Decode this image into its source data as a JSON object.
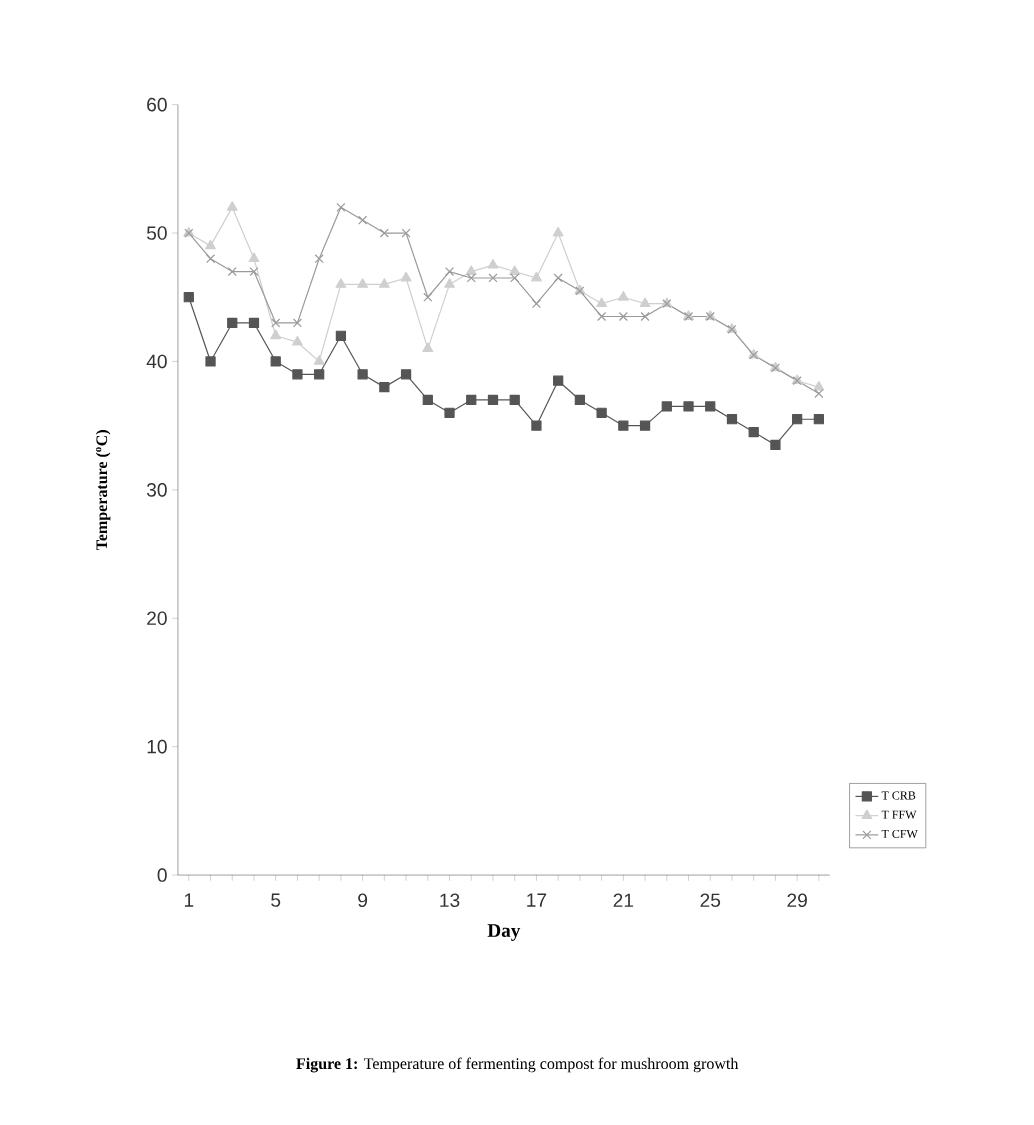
{
  "chart_data": {
    "type": "line",
    "title": "**Figure 1:** Temperature of fermenting compost for mushroom growth",
    "xlabel": "Day",
    "ylabel": "Temperature ($^{o}$C)",
    "categories": [
      "1",
      null,
      null,
      null,
      "5",
      null,
      null,
      null,
      "9",
      null,
      null,
      null,
      "13",
      null,
      null,
      null,
      "17",
      null,
      null,
      null,
      "21",
      null,
      null,
      null,
      "25",
      null,
      null,
      null,
      "29",
      null
    ],
    "ylim": [
      0,
      60
    ],
    "yticks": [
      0,
      10,
      20,
      30,
      40,
      50,
      60
    ],
    "legend": "right",
    "series": [
      {
        "name": "T  CRB",
        "color": "#555555",
        "marker": "square",
        "values": [
          45,
          40,
          43,
          43,
          40,
          39,
          39,
          42,
          39,
          38,
          39,
          37,
          36,
          37,
          37,
          37,
          35,
          38.5,
          37,
          36,
          35,
          35,
          36.5,
          36.5,
          36.5,
          35.5,
          34.5,
          33.5,
          35.5,
          35.5
        ]
      },
      {
        "name": "T  FFW",
        "color": "#cfcfcf",
        "marker": "triangle",
        "values": [
          50,
          49,
          52,
          48,
          42,
          41.5,
          40,
          46,
          46,
          46,
          46.5,
          41,
          46,
          47,
          47.5,
          47,
          46.5,
          50,
          45.5,
          44.5,
          45,
          44.5,
          44.5,
          43.5,
          43.5,
          42.5,
          40.5,
          39.5,
          38.5,
          38
        ]
      },
      {
        "name": "T  CFW",
        "color": "#9a9a9a",
        "marker": "cross",
        "values": [
          50,
          48,
          47,
          47,
          43,
          43,
          48,
          52,
          51,
          50,
          50,
          45,
          47,
          46.5,
          46.5,
          46.5,
          44.5,
          46.5,
          45.5,
          43.5,
          43.5,
          43.5,
          44.5,
          43.5,
          43.5,
          42.5,
          40.5,
          39.5,
          38.5,
          37.5
        ]
      }
    ]
  }
}
